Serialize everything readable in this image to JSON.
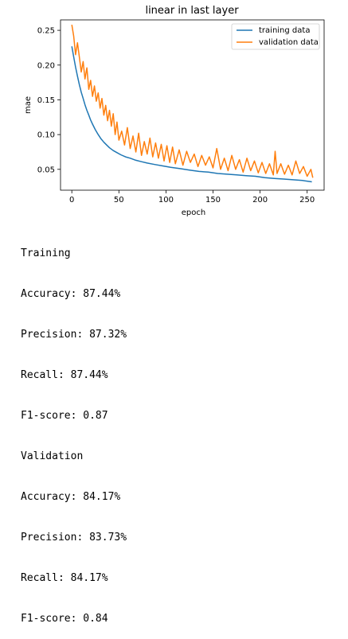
{
  "chart_data": {
    "type": "line",
    "title": "linear in last layer",
    "xlabel": "epoch",
    "ylabel": "mae",
    "xlim": [
      -12,
      268
    ],
    "ylim": [
      0.02,
      0.265
    ],
    "xticks": [
      0,
      50,
      100,
      150,
      200,
      250
    ],
    "yticks": [
      0.05,
      0.1,
      0.15,
      0.2,
      0.25
    ],
    "grid": false,
    "legend_position": "top-right",
    "series": [
      {
        "name": "training data",
        "color": "#1f77b4",
        "x": [
          0,
          2,
          4,
          6,
          8,
          10,
          12,
          14,
          16,
          18,
          20,
          22,
          25,
          28,
          31,
          34,
          37,
          40,
          44,
          48,
          52,
          57,
          62,
          68,
          74,
          80,
          88,
          96,
          105,
          115,
          125,
          135,
          145,
          155,
          165,
          175,
          185,
          195,
          205,
          215,
          225,
          235,
          245,
          255
        ],
        "y": [
          0.227,
          0.212,
          0.197,
          0.184,
          0.172,
          0.161,
          0.152,
          0.143,
          0.135,
          0.128,
          0.121,
          0.115,
          0.107,
          0.1,
          0.094,
          0.089,
          0.085,
          0.081,
          0.077,
          0.074,
          0.071,
          0.068,
          0.066,
          0.063,
          0.061,
          0.059,
          0.057,
          0.055,
          0.053,
          0.051,
          0.049,
          0.047,
          0.046,
          0.044,
          0.043,
          0.042,
          0.041,
          0.04,
          0.038,
          0.037,
          0.036,
          0.035,
          0.034,
          0.032
        ]
      },
      {
        "name": "validation data",
        "color": "#ff7f0e",
        "x": [
          0,
          2,
          4,
          6,
          8,
          10,
          12,
          14,
          16,
          18,
          20,
          22,
          24,
          26,
          28,
          30,
          32,
          34,
          36,
          38,
          40,
          42,
          44,
          46,
          48,
          50,
          53,
          56,
          59,
          62,
          65,
          68,
          71,
          74,
          77,
          80,
          83,
          86,
          89,
          92,
          95,
          98,
          101,
          104,
          107,
          110,
          114,
          118,
          122,
          126,
          130,
          134,
          138,
          142,
          146,
          150,
          154,
          158,
          162,
          166,
          170,
          174,
          178,
          182,
          186,
          190,
          194,
          198,
          202,
          206,
          210,
          214,
          216,
          218,
          222,
          226,
          230,
          234,
          238,
          242,
          246,
          250,
          254,
          256
        ],
        "y": [
          0.258,
          0.242,
          0.215,
          0.232,
          0.212,
          0.19,
          0.205,
          0.18,
          0.196,
          0.165,
          0.178,
          0.155,
          0.17,
          0.148,
          0.16,
          0.138,
          0.152,
          0.128,
          0.142,
          0.12,
          0.135,
          0.112,
          0.13,
          0.1,
          0.118,
          0.092,
          0.105,
          0.085,
          0.11,
          0.08,
          0.098,
          0.075,
          0.102,
          0.07,
          0.09,
          0.072,
          0.095,
          0.068,
          0.088,
          0.066,
          0.086,
          0.062,
          0.084,
          0.06,
          0.082,
          0.058,
          0.078,
          0.056,
          0.076,
          0.06,
          0.072,
          0.054,
          0.07,
          0.056,
          0.068,
          0.052,
          0.08,
          0.05,
          0.066,
          0.048,
          0.07,
          0.05,
          0.064,
          0.046,
          0.066,
          0.048,
          0.062,
          0.045,
          0.06,
          0.044,
          0.058,
          0.042,
          0.076,
          0.044,
          0.058,
          0.043,
          0.056,
          0.042,
          0.062,
          0.044,
          0.054,
          0.04,
          0.05,
          0.038
        ]
      }
    ]
  },
  "metrics": {
    "lines": [
      "Training",
      "Accuracy: 87.44%",
      "Precision: 87.32%",
      "Recall: 87.44%",
      "F1-score: 0.87",
      "Validation",
      "Accuracy: 84.17%",
      "Precision: 83.73%",
      "Recall: 84.17%",
      "F1-score: 0.84"
    ]
  }
}
